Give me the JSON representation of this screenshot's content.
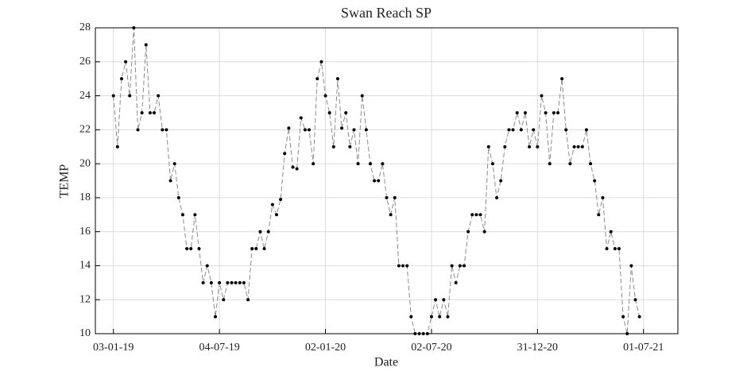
{
  "chart_data": {
    "type": "line",
    "title": "Swan Reach SP",
    "x_label": "Date",
    "y_label": "TEMP",
    "x": [
      "2019-01-03",
      "2019-01-10",
      "2019-01-17",
      "2019-01-24",
      "2019-01-31",
      "2019-02-07",
      "2019-02-14",
      "2019-02-21",
      "2019-02-28",
      "2019-03-07",
      "2019-03-14",
      "2019-03-21",
      "2019-03-28",
      "2019-04-04",
      "2019-04-11",
      "2019-04-18",
      "2019-04-25",
      "2019-05-02",
      "2019-05-09",
      "2019-05-16",
      "2019-05-23",
      "2019-05-30",
      "2019-06-06",
      "2019-06-13",
      "2019-06-20",
      "2019-06-27",
      "2019-07-04",
      "2019-07-11",
      "2019-07-18",
      "2019-07-25",
      "2019-08-01",
      "2019-08-08",
      "2019-08-15",
      "2019-08-22",
      "2019-08-29",
      "2019-09-05",
      "2019-09-12",
      "2019-09-19",
      "2019-09-26",
      "2019-10-03",
      "2019-10-10",
      "2019-10-17",
      "2019-10-24",
      "2019-10-31",
      "2019-11-07",
      "2019-11-14",
      "2019-11-21",
      "2019-11-28",
      "2019-12-05",
      "2019-12-12",
      "2019-12-19",
      "2019-12-26",
      "2020-01-02",
      "2020-01-09",
      "2020-01-16",
      "2020-01-23",
      "2020-01-30",
      "2020-02-06",
      "2020-02-13",
      "2020-02-20",
      "2020-02-27",
      "2020-03-05",
      "2020-03-12",
      "2020-03-19",
      "2020-03-26",
      "2020-04-02",
      "2020-04-09",
      "2020-04-16",
      "2020-04-23",
      "2020-04-30",
      "2020-05-07",
      "2020-05-14",
      "2020-05-21",
      "2020-05-28",
      "2020-06-04",
      "2020-06-11",
      "2020-06-18",
      "2020-06-25",
      "2020-07-02",
      "2020-07-09",
      "2020-07-16",
      "2020-07-23",
      "2020-07-30",
      "2020-08-06",
      "2020-08-13",
      "2020-08-20",
      "2020-08-27",
      "2020-09-03",
      "2020-09-10",
      "2020-09-17",
      "2020-09-24",
      "2020-10-01",
      "2020-10-08",
      "2020-10-15",
      "2020-10-22",
      "2020-10-29",
      "2020-11-05",
      "2020-11-12",
      "2020-11-19",
      "2020-11-26",
      "2020-12-03",
      "2020-12-10",
      "2020-12-17",
      "2020-12-24",
      "2020-12-31",
      "2021-01-07",
      "2021-01-14",
      "2021-01-21",
      "2021-01-28",
      "2021-02-04",
      "2021-02-11",
      "2021-02-18",
      "2021-02-25",
      "2021-03-04",
      "2021-03-11",
      "2021-03-18",
      "2021-03-25",
      "2021-04-01",
      "2021-04-08",
      "2021-04-15",
      "2021-04-22",
      "2021-04-29",
      "2021-05-06",
      "2021-05-13",
      "2021-05-20",
      "2021-05-27",
      "2021-06-03",
      "2021-06-10",
      "2021-06-17",
      "2021-06-24"
    ],
    "series": [
      {
        "color": "#000000",
        "line_color": "#8c8c8c",
        "values": [
          24,
          21,
          25,
          26,
          24,
          28,
          22,
          23,
          27,
          23,
          23,
          24,
          22,
          22,
          19,
          20,
          18,
          17,
          15,
          15,
          17,
          15,
          13,
          14,
          13,
          11,
          13,
          12,
          13,
          13,
          13,
          13,
          13,
          12,
          15,
          15,
          16,
          15,
          16,
          17.6,
          17,
          17.9,
          20.6,
          22.1,
          19.8,
          19.7,
          22.7,
          22,
          22,
          20,
          25,
          26,
          24,
          23,
          21,
          25,
          22.1,
          23,
          21,
          22,
          20,
          24,
          22,
          20,
          19,
          19,
          20,
          18,
          17,
          18,
          14,
          14,
          14,
          11,
          10,
          10,
          10,
          10,
          11,
          12,
          11,
          12,
          11,
          14,
          13,
          14,
          14,
          16,
          17,
          17,
          17,
          16,
          21,
          20,
          18,
          19,
          21,
          22,
          22,
          23,
          22,
          23,
          21,
          22,
          21,
          24,
          23,
          20,
          23,
          23,
          25,
          22,
          20,
          21,
          21,
          21,
          22,
          20,
          19,
          17,
          18,
          15,
          16,
          15,
          15,
          11,
          10,
          14,
          12,
          11
        ]
      }
    ],
    "xlim": [
      "2018-12-03",
      "2021-08-29"
    ],
    "xticks": [
      {
        "value": "2019-01-03",
        "label": "03-01-19"
      },
      {
        "value": "2019-07-04",
        "label": "04-07-19"
      },
      {
        "value": "2020-01-02",
        "label": "02-01-20"
      },
      {
        "value": "2020-07-02",
        "label": "02-07-20"
      },
      {
        "value": "2020-12-31",
        "label": "31-12-20"
      },
      {
        "value": "2021-07-01",
        "label": "01-07-21"
      }
    ],
    "ylim": [
      10,
      28
    ],
    "yticks": [
      10,
      12,
      14,
      16,
      18,
      20,
      22,
      24,
      26,
      28
    ],
    "grid": true
  }
}
